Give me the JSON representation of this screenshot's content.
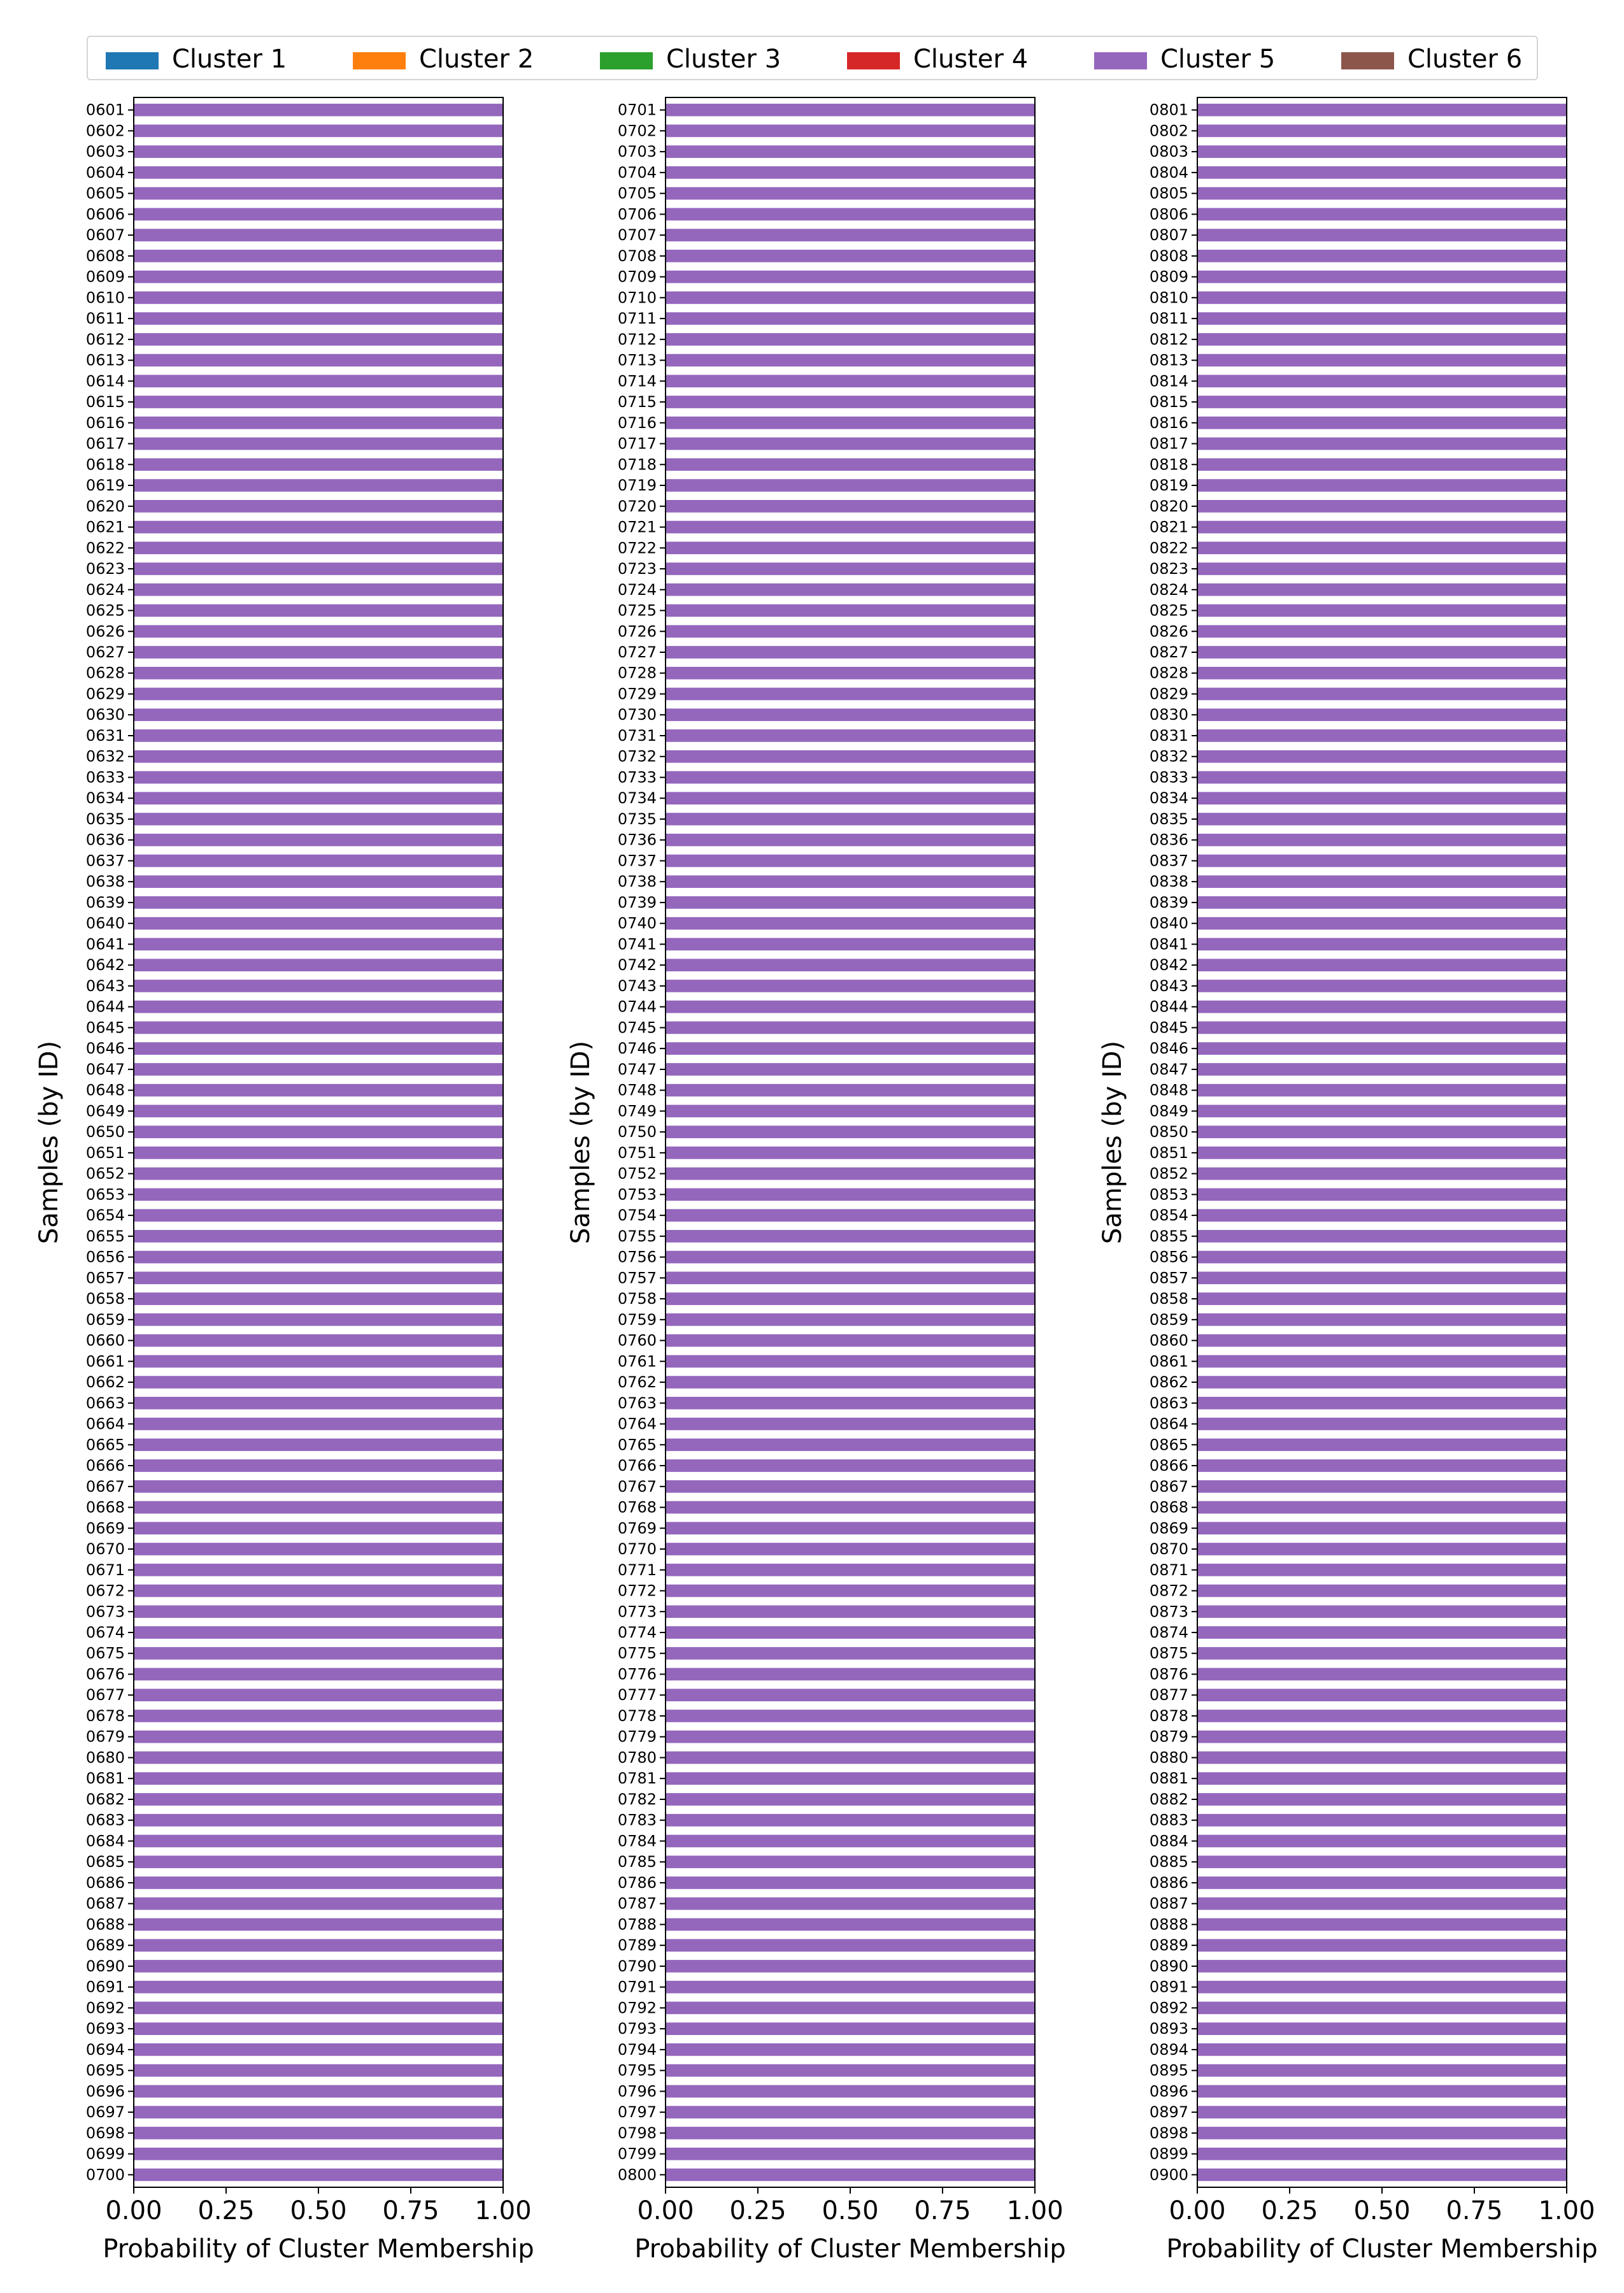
{
  "legend": {
    "items": [
      {
        "label": "Cluster 1",
        "color": "#1f77b4"
      },
      {
        "label": "Cluster 2",
        "color": "#ff7f0e"
      },
      {
        "label": "Cluster 3",
        "color": "#2ca02c"
      },
      {
        "label": "Cluster 4",
        "color": "#d62728"
      },
      {
        "label": "Cluster 5",
        "color": "#9467bd"
      },
      {
        "label": "Cluster 6",
        "color": "#8c564b"
      }
    ]
  },
  "chart_data": [
    {
      "type": "bar",
      "orientation": "horizontal",
      "stacked": true,
      "xlabel": "Probability of Cluster Membership",
      "ylabel": "Samples (by ID)",
      "xlim": [
        0,
        1
      ],
      "xticks": [
        "0.00",
        "0.25",
        "0.50",
        "0.75",
        "1.00"
      ],
      "id_start": 601,
      "id_end": 700,
      "categories": [
        "0601",
        "0602",
        "0603",
        "0604",
        "0605",
        "0606",
        "0607",
        "0608",
        "0609",
        "0610",
        "0611",
        "0612",
        "0613",
        "0614",
        "0615",
        "0616",
        "0617",
        "0618",
        "0619",
        "0620",
        "0621",
        "0622",
        "0623",
        "0624",
        "0625",
        "0626",
        "0627",
        "0628",
        "0629",
        "0630",
        "0631",
        "0632",
        "0633",
        "0634",
        "0635",
        "0636",
        "0637",
        "0638",
        "0639",
        "0640",
        "0641",
        "0642",
        "0643",
        "0644",
        "0645",
        "0646",
        "0647",
        "0648",
        "0649",
        "0650",
        "0651",
        "0652",
        "0653",
        "0654",
        "0655",
        "0656",
        "0657",
        "0658",
        "0659",
        "0660",
        "0661",
        "0662",
        "0663",
        "0664",
        "0665",
        "0666",
        "0667",
        "0668",
        "0669",
        "0670",
        "0671",
        "0672",
        "0673",
        "0674",
        "0675",
        "0676",
        "0677",
        "0678",
        "0679",
        "0680",
        "0681",
        "0682",
        "0683",
        "0684",
        "0685",
        "0686",
        "0687",
        "0688",
        "0689",
        "0690",
        "0691",
        "0692",
        "0693",
        "0694",
        "0695",
        "0696",
        "0697",
        "0698",
        "0699",
        "0700"
      ],
      "series_values": {
        "Cluster 1": 0,
        "Cluster 2": 0,
        "Cluster 3": 0,
        "Cluster 4": 0,
        "Cluster 5": 1.0,
        "Cluster 6": 0
      }
    },
    {
      "type": "bar",
      "orientation": "horizontal",
      "stacked": true,
      "xlabel": "Probability of Cluster Membership",
      "ylabel": "Samples (by ID)",
      "xlim": [
        0,
        1
      ],
      "xticks": [
        "0.00",
        "0.25",
        "0.50",
        "0.75",
        "1.00"
      ],
      "id_start": 701,
      "id_end": 800,
      "categories": [
        "0701",
        "0702",
        "0703",
        "0704",
        "0705",
        "0706",
        "0707",
        "0708",
        "0709",
        "0710",
        "0711",
        "0712",
        "0713",
        "0714",
        "0715",
        "0716",
        "0717",
        "0718",
        "0719",
        "0720",
        "0721",
        "0722",
        "0723",
        "0724",
        "0725",
        "0726",
        "0727",
        "0728",
        "0729",
        "0730",
        "0731",
        "0732",
        "0733",
        "0734",
        "0735",
        "0736",
        "0737",
        "0738",
        "0739",
        "0740",
        "0741",
        "0742",
        "0743",
        "0744",
        "0745",
        "0746",
        "0747",
        "0748",
        "0749",
        "0750",
        "0751",
        "0752",
        "0753",
        "0754",
        "0755",
        "0756",
        "0757",
        "0758",
        "0759",
        "0760",
        "0761",
        "0762",
        "0763",
        "0764",
        "0765",
        "0766",
        "0767",
        "0768",
        "0769",
        "0770",
        "0771",
        "0772",
        "0773",
        "0774",
        "0775",
        "0776",
        "0777",
        "0778",
        "0779",
        "0780",
        "0781",
        "0782",
        "0783",
        "0784",
        "0785",
        "0786",
        "0787",
        "0788",
        "0789",
        "0790",
        "0791",
        "0792",
        "0793",
        "0794",
        "0795",
        "0796",
        "0797",
        "0798",
        "0799",
        "0800"
      ],
      "series_values": {
        "Cluster 1": 0,
        "Cluster 2": 0,
        "Cluster 3": 0,
        "Cluster 4": 0,
        "Cluster 5": 1.0,
        "Cluster 6": 0
      }
    },
    {
      "type": "bar",
      "orientation": "horizontal",
      "stacked": true,
      "xlabel": "Probability of Cluster Membership",
      "ylabel": "Samples (by ID)",
      "xlim": [
        0,
        1
      ],
      "xticks": [
        "0.00",
        "0.25",
        "0.50",
        "0.75",
        "1.00"
      ],
      "id_start": 801,
      "id_end": 900,
      "categories": [
        "0801",
        "0802",
        "0803",
        "0804",
        "0805",
        "0806",
        "0807",
        "0808",
        "0809",
        "0810",
        "0811",
        "0812",
        "0813",
        "0814",
        "0815",
        "0816",
        "0817",
        "0818",
        "0819",
        "0820",
        "0821",
        "0822",
        "0823",
        "0824",
        "0825",
        "0826",
        "0827",
        "0828",
        "0829",
        "0830",
        "0831",
        "0832",
        "0833",
        "0834",
        "0835",
        "0836",
        "0837",
        "0838",
        "0839",
        "0840",
        "0841",
        "0842",
        "0843",
        "0844",
        "0845",
        "0846",
        "0847",
        "0848",
        "0849",
        "0850",
        "0851",
        "0852",
        "0853",
        "0854",
        "0855",
        "0856",
        "0857",
        "0858",
        "0859",
        "0860",
        "0861",
        "0862",
        "0863",
        "0864",
        "0865",
        "0866",
        "0867",
        "0868",
        "0869",
        "0870",
        "0871",
        "0872",
        "0873",
        "0874",
        "0875",
        "0876",
        "0877",
        "0878",
        "0879",
        "0880",
        "0881",
        "0882",
        "0883",
        "0884",
        "0885",
        "0886",
        "0887",
        "0888",
        "0889",
        "0890",
        "0891",
        "0892",
        "0893",
        "0894",
        "0895",
        "0896",
        "0897",
        "0898",
        "0899",
        "0900"
      ],
      "series_values": {
        "Cluster 1": 0,
        "Cluster 2": 0,
        "Cluster 3": 0,
        "Cluster 4": 0,
        "Cluster 5": 1.0,
        "Cluster 6": 0
      }
    }
  ]
}
